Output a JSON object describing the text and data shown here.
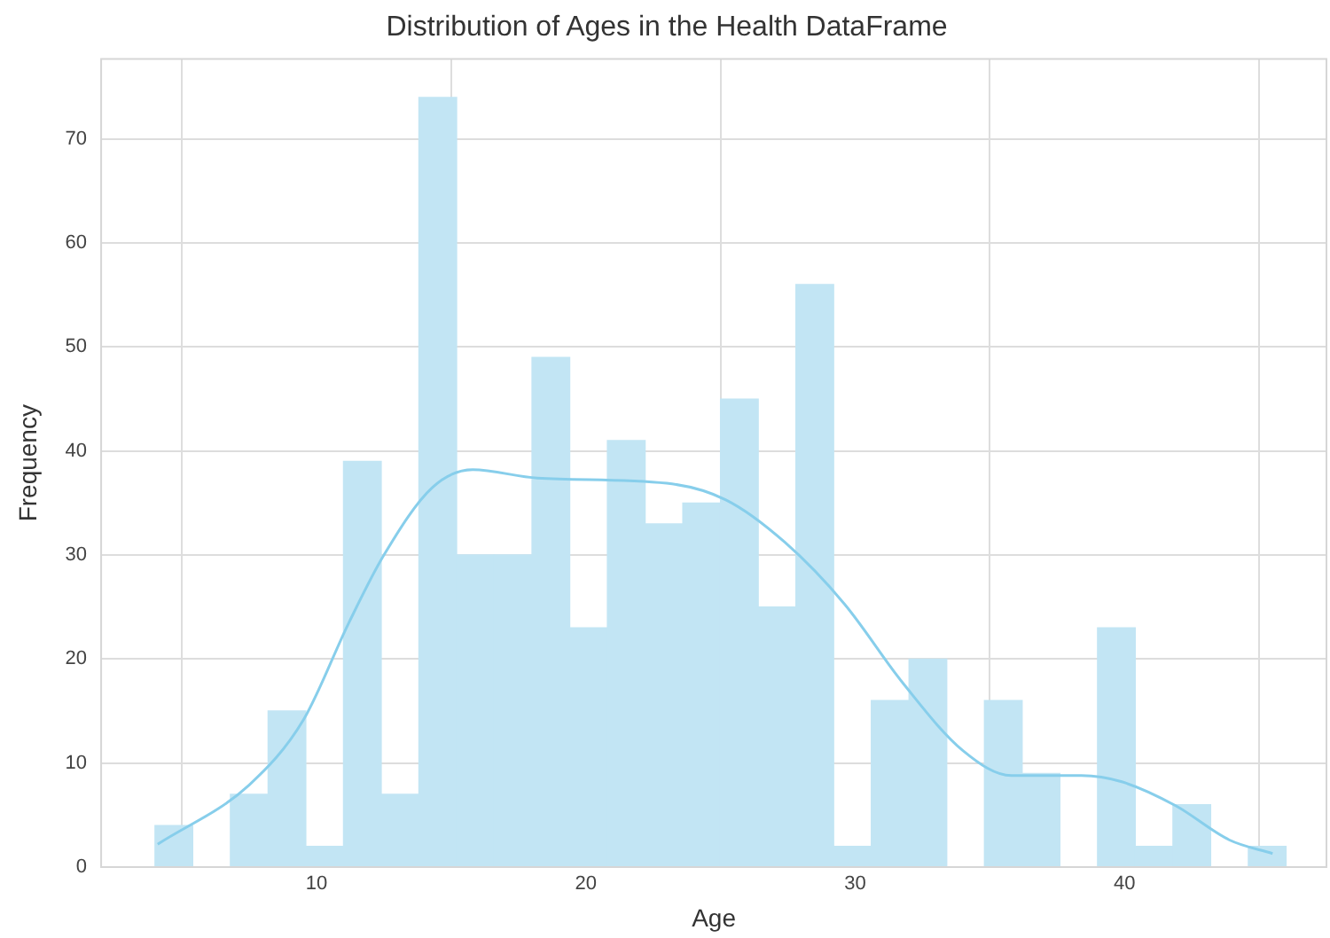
{
  "chart_data": {
    "type": "histogram",
    "title": "Distribution of Ages in the Health DataFrame",
    "xlabel": "Age",
    "ylabel": "Frequency",
    "bins": [
      4,
      5.4,
      6.8,
      8.2,
      9.6,
      11,
      12.4,
      13.8,
      15.2,
      16.6,
      18,
      19.4,
      20.8,
      22.2,
      23.6,
      25,
      26.4,
      27.8,
      29.2,
      30.6,
      32,
      33.4,
      34.8,
      36.2,
      37.6,
      39,
      40.4,
      41.8,
      43.2,
      44.6,
      46
    ],
    "values": [
      4,
      0,
      7,
      15,
      2,
      39,
      7,
      74,
      30,
      30,
      49,
      23,
      41,
      33,
      35,
      45,
      25,
      56,
      2,
      16,
      20,
      0,
      16,
      9,
      0,
      23,
      2,
      6,
      0,
      2
    ],
    "color": "#c2e5f4",
    "series": [
      {
        "type": "line",
        "color": "#87ceeb",
        "x": [
          4.1,
          7.5,
          9.5,
          11.2,
          12.5,
          14.3,
          15.8,
          18.2,
          23.0,
          25.2,
          27.4,
          29.6,
          31.8,
          34.0,
          35.8,
          38.4,
          39.9,
          41.9,
          43.9,
          45.5
        ],
        "values": [
          2.2,
          7.9,
          14.1,
          23.5,
          30,
          36.5,
          38.2,
          37.4,
          36.9,
          35.3,
          31.2,
          25.3,
          17.6,
          11.2,
          8.8,
          8.8,
          8.2,
          5.9,
          2.6,
          1.3
        ]
      }
    ],
    "xlim": [
      2,
      47.5
    ],
    "ylim": [
      0,
      77.7
    ],
    "xticks": [
      10,
      20,
      30,
      40
    ],
    "yticks": [
      0,
      10,
      20,
      30,
      40,
      50,
      60,
      70
    ],
    "grid": true
  }
}
